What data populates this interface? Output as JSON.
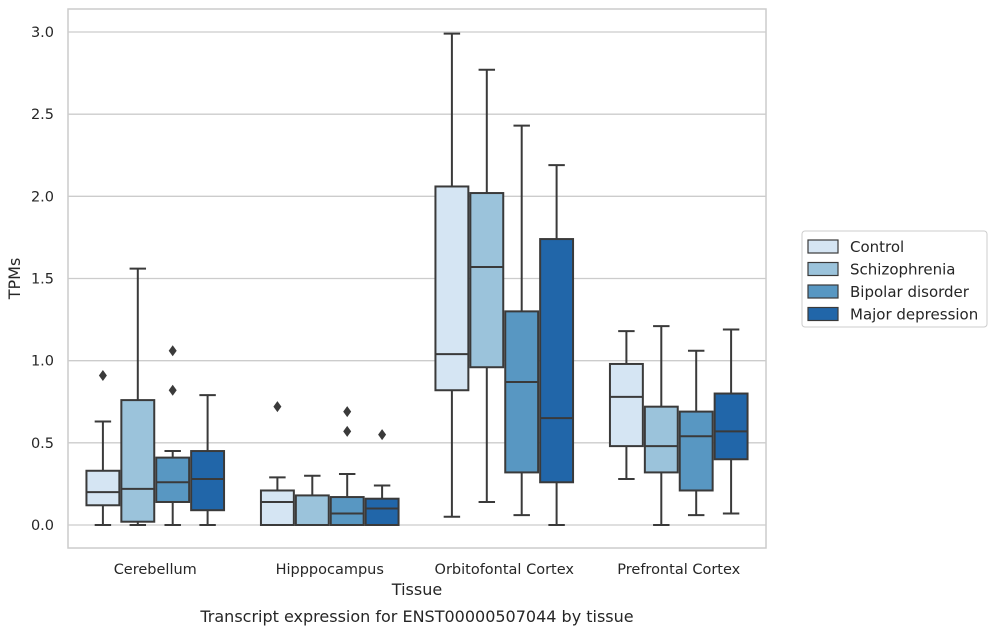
{
  "chart_data": {
    "type": "box",
    "caption": "Transcript expression for ENST00000507044 by tissue",
    "xlabel": "Tissue",
    "ylabel": "TPMs",
    "ylim": [
      -0.14,
      3.14
    ],
    "yticks": [
      0.0,
      0.5,
      1.0,
      1.5,
      2.0,
      2.5,
      3.0
    ],
    "ytick_labels": [
      "0.0",
      "0.5",
      "1.0",
      "1.5",
      "2.0",
      "2.5",
      "3.0"
    ],
    "grid": "horizontal",
    "legend_position": "right",
    "categories": [
      "Cerebellum",
      "Hipppocampus",
      "Orbitofontal Cortex",
      "Prefrontal Cortex"
    ],
    "series": [
      {
        "name": "Control",
        "color": "#d5e5f3",
        "boxes": [
          {
            "whisker_low": 0.0,
            "q1": 0.12,
            "median": 0.2,
            "q3": 0.33,
            "whisker_high": 0.63,
            "outliers": [
              0.91
            ]
          },
          {
            "whisker_low": 0.0,
            "q1": 0.0,
            "median": 0.14,
            "q3": 0.21,
            "whisker_high": 0.29,
            "outliers": [
              0.72
            ]
          },
          {
            "whisker_low": 0.05,
            "q1": 0.82,
            "median": 1.04,
            "q3": 2.06,
            "whisker_high": 2.99,
            "outliers": []
          },
          {
            "whisker_low": 0.28,
            "q1": 0.48,
            "median": 0.78,
            "q3": 0.98,
            "whisker_high": 1.18,
            "outliers": []
          }
        ]
      },
      {
        "name": "Schizophrenia",
        "color": "#9bc3db",
        "boxes": [
          {
            "whisker_low": 0.0,
            "q1": 0.02,
            "median": 0.22,
            "q3": 0.76,
            "whisker_high": 1.56,
            "outliers": []
          },
          {
            "whisker_low": 0.0,
            "q1": 0.0,
            "median": 0.0,
            "q3": 0.18,
            "whisker_high": 0.3,
            "outliers": []
          },
          {
            "whisker_low": 0.14,
            "q1": 0.96,
            "median": 1.57,
            "q3": 2.02,
            "whisker_high": 2.77,
            "outliers": []
          },
          {
            "whisker_low": 0.0,
            "q1": 0.32,
            "median": 0.48,
            "q3": 0.72,
            "whisker_high": 1.21,
            "outliers": []
          }
        ]
      },
      {
        "name": "Bipolar disorder",
        "color": "#5897c2",
        "boxes": [
          {
            "whisker_low": 0.0,
            "q1": 0.14,
            "median": 0.26,
            "q3": 0.41,
            "whisker_high": 0.45,
            "outliers": [
              0.82,
              1.06
            ]
          },
          {
            "whisker_low": 0.0,
            "q1": 0.0,
            "median": 0.07,
            "q3": 0.17,
            "whisker_high": 0.31,
            "outliers": [
              0.57,
              0.69
            ]
          },
          {
            "whisker_low": 0.06,
            "q1": 0.32,
            "median": 0.87,
            "q3": 1.3,
            "whisker_high": 2.43,
            "outliers": []
          },
          {
            "whisker_low": 0.06,
            "q1": 0.21,
            "median": 0.54,
            "q3": 0.69,
            "whisker_high": 1.06,
            "outliers": []
          }
        ]
      },
      {
        "name": "Major depression",
        "color": "#2166a9",
        "boxes": [
          {
            "whisker_low": 0.0,
            "q1": 0.09,
            "median": 0.28,
            "q3": 0.45,
            "whisker_high": 0.79,
            "outliers": []
          },
          {
            "whisker_low": 0.0,
            "q1": 0.0,
            "median": 0.1,
            "q3": 0.16,
            "whisker_high": 0.24,
            "outliers": [
              0.55
            ]
          },
          {
            "whisker_low": 0.0,
            "q1": 0.26,
            "median": 0.65,
            "q3": 1.74,
            "whisker_high": 2.19,
            "outliers": []
          },
          {
            "whisker_low": 0.07,
            "q1": 0.4,
            "median": 0.57,
            "q3": 0.8,
            "whisker_high": 1.19,
            "outliers": []
          }
        ]
      }
    ]
  }
}
